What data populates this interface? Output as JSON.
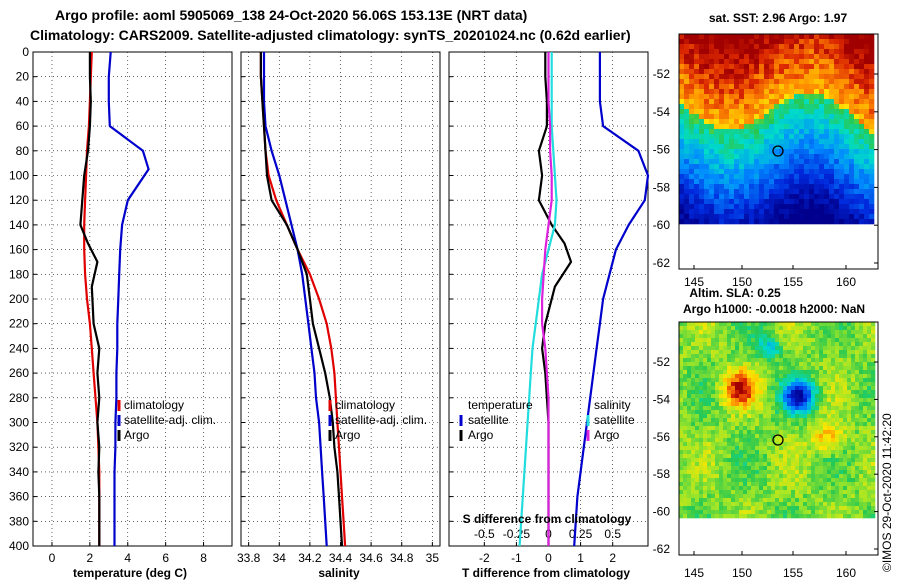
{
  "title_line1": "Argo profile: aoml 5905069_138 24-Oct-2020 56.06S 153.13E (NRT data)",
  "title_line2": "Climatology: CARS2009. Satellite-adjusted climatology: synTS_20201024.nc (0.62d earlier)",
  "watermark": "©IMOS 29-Oct-2020 11:42:20",
  "colors": {
    "climatology": "#e00000",
    "satellite": "#0000cc",
    "argo": "#000000",
    "t_diff": "#22dddd",
    "s_diff": "#dd22dd"
  },
  "chart_data": [
    {
      "type": "line",
      "name": "temperature",
      "xlabel": "temperature (deg C)",
      "xlim": [
        -1,
        9.5
      ],
      "xticks": [
        "0",
        "2",
        "4",
        "6",
        "8"
      ],
      "xtick_values": [
        0,
        2,
        4,
        6,
        8
      ],
      "ylim": [
        0,
        400
      ],
      "yticks": [
        "0",
        "20",
        "40",
        "60",
        "80",
        "100",
        "120",
        "140",
        "160",
        "180",
        "200",
        "220",
        "240",
        "260",
        "280",
        "300",
        "320",
        "340",
        "360",
        "380",
        "400"
      ],
      "legend": [
        "climatology",
        "satellite-adj. clim.",
        "Argo"
      ],
      "series": [
        {
          "name": "climatology",
          "color": "#e00000",
          "x": [
            2.1,
            2.05,
            2.0,
            1.95,
            1.85,
            1.8,
            1.75,
            1.7,
            1.7,
            1.75,
            1.85,
            2.0,
            2.1,
            2.2,
            2.3,
            2.4,
            2.45,
            2.5,
            2.5,
            2.5,
            2.5
          ],
          "y": [
            0,
            20,
            40,
            60,
            80,
            100,
            120,
            140,
            160,
            180,
            200,
            220,
            240,
            260,
            280,
            300,
            320,
            340,
            360,
            380,
            400
          ]
        },
        {
          "name": "satellite-adj. clim.",
          "color": "#0000cc",
          "x": [
            3.1,
            3.0,
            3.0,
            3.05,
            4.8,
            5.1,
            4.0,
            3.7,
            3.6,
            3.55,
            3.5,
            3.45,
            3.45,
            3.4,
            3.4,
            3.35,
            3.35,
            3.3,
            3.3,
            3.3,
            3.3
          ],
          "y": [
            0,
            20,
            40,
            60,
            80,
            95,
            120,
            140,
            160,
            180,
            200,
            220,
            240,
            260,
            280,
            300,
            320,
            340,
            360,
            380,
            400
          ]
        },
        {
          "name": "Argo",
          "color": "#000000",
          "x": [
            2.0,
            2.0,
            2.05,
            2.0,
            1.9,
            1.7,
            1.6,
            1.5,
            1.9,
            2.4,
            2.1,
            2.2,
            2.5,
            2.4,
            2.5,
            2.4,
            2.5,
            2.45,
            2.5,
            2.5,
            2.5
          ],
          "y": [
            0,
            20,
            40,
            60,
            80,
            100,
            120,
            140,
            155,
            170,
            190,
            220,
            240,
            260,
            280,
            300,
            320,
            340,
            360,
            380,
            400
          ]
        }
      ]
    },
    {
      "type": "line",
      "name": "salinity",
      "xlabel": "salinity",
      "xlim": [
        33.75,
        35.05
      ],
      "xticks": [
        "33.8",
        "34",
        "34.2",
        "34.4",
        "34.6",
        "34.8",
        "35"
      ],
      "xtick_values": [
        33.8,
        34.0,
        34.2,
        34.4,
        34.6,
        34.8,
        35.0
      ],
      "ylim": [
        0,
        400
      ],
      "legend": [
        "climatology",
        "satellite-adj. clim.",
        "Argo"
      ],
      "series": [
        {
          "name": "climatology",
          "color": "#e00000",
          "x": [
            33.88,
            33.88,
            33.89,
            33.9,
            33.91,
            33.93,
            33.98,
            34.05,
            34.12,
            34.2,
            34.26,
            34.31,
            34.34,
            34.36,
            34.37,
            34.38,
            34.39,
            34.4,
            34.41,
            34.42,
            34.43
          ],
          "y": [
            0,
            20,
            40,
            60,
            80,
            100,
            120,
            140,
            160,
            180,
            200,
            220,
            240,
            260,
            280,
            300,
            320,
            340,
            360,
            380,
            400
          ]
        },
        {
          "name": "satellite-adj. clim.",
          "color": "#0000cc",
          "x": [
            33.9,
            33.9,
            33.9,
            33.91,
            33.95,
            34.0,
            34.04,
            34.08,
            34.12,
            34.15,
            34.17,
            34.19,
            34.21,
            34.23,
            34.24,
            34.26,
            34.27,
            34.28,
            34.29,
            34.3,
            34.31
          ],
          "y": [
            0,
            20,
            40,
            60,
            80,
            100,
            120,
            140,
            160,
            180,
            200,
            220,
            240,
            260,
            280,
            300,
            320,
            340,
            360,
            380,
            400
          ]
        },
        {
          "name": "Argo",
          "color": "#000000",
          "x": [
            33.88,
            33.88,
            33.89,
            33.9,
            33.91,
            33.92,
            33.95,
            34.05,
            34.12,
            34.18,
            34.2,
            34.22,
            34.26,
            34.3,
            34.33,
            34.35,
            34.36,
            34.38,
            34.39,
            34.4,
            34.41
          ],
          "y": [
            0,
            20,
            40,
            60,
            80,
            100,
            120,
            140,
            160,
            180,
            200,
            220,
            240,
            260,
            280,
            300,
            320,
            340,
            360,
            380,
            400
          ]
        }
      ]
    },
    {
      "type": "line",
      "name": "difference",
      "xlabel": "T difference from climatology",
      "top_label": "S difference from climatology",
      "xlim": [
        -3.1,
        3.1
      ],
      "xticks": [
        "-2",
        "-1",
        "0",
        "1",
        "2"
      ],
      "xtick_values": [
        -2,
        -1,
        0,
        1,
        2
      ],
      "top_ticks": [
        "-0.5",
        "-0.25",
        "0",
        "0.25",
        "0.5"
      ],
      "top_tick_values": [
        -0.5,
        -0.25,
        0,
        0.25,
        0.5
      ],
      "ylim": [
        0,
        400
      ],
      "legend_left_title": "temperature",
      "legend_left": [
        "satellite",
        "Argo"
      ],
      "legend_right_title": "salinity",
      "legend_right": [
        "satellite",
        "Argo"
      ],
      "series": [
        {
          "name": "T satellite",
          "color": "#0000cc",
          "x": [
            1.6,
            1.6,
            1.6,
            1.7,
            2.8,
            3.1,
            3.0,
            2.5,
            2.1,
            1.9,
            1.7,
            1.6,
            1.5,
            1.4,
            1.3,
            1.2,
            1.1,
            1.0,
            0.9,
            0.85,
            0.8
          ],
          "y": [
            0,
            20,
            40,
            60,
            80,
            100,
            120,
            140,
            160,
            180,
            200,
            220,
            240,
            260,
            280,
            300,
            320,
            340,
            360,
            380,
            400
          ]
        },
        {
          "name": "T Argo",
          "color": "#000000",
          "x": [
            -0.1,
            -0.1,
            -0.05,
            -0.05,
            -0.3,
            -0.2,
            -0.3,
            0.1,
            0.5,
            0.7,
            0.2,
            -0.1,
            -0.2,
            -0.1,
            -0.05,
            0.0,
            0.0,
            0.0,
            0.0,
            0.0,
            0.0
          ],
          "y": [
            0,
            20,
            40,
            60,
            80,
            100,
            120,
            140,
            155,
            170,
            190,
            220,
            240,
            260,
            280,
            300,
            320,
            340,
            360,
            380,
            400
          ]
        },
        {
          "name": "S satellite",
          "color": "#22dddd",
          "x": [
            0.1,
            0.1,
            0.1,
            0.1,
            0.15,
            0.2,
            0.25,
            0.2,
            0.0,
            -0.2,
            -0.3,
            -0.4,
            -0.5,
            -0.55,
            -0.6,
            -0.65,
            -0.7,
            -0.75,
            -0.8,
            -0.85,
            -0.9
          ],
          "y": [
            0,
            20,
            40,
            60,
            80,
            100,
            120,
            140,
            160,
            180,
            200,
            220,
            240,
            260,
            280,
            300,
            320,
            340,
            360,
            380,
            400
          ]
        },
        {
          "name": "S Argo",
          "color": "#dd22dd",
          "x": [
            0.0,
            0.0,
            0.0,
            0.05,
            0.05,
            0.1,
            0.1,
            0.0,
            -0.1,
            -0.15,
            -0.2,
            -0.2,
            -0.1,
            -0.05,
            0.0,
            0.0,
            0.0,
            0.0,
            0.0,
            0.0,
            0.0
          ],
          "y": [
            0,
            20,
            40,
            60,
            80,
            100,
            120,
            140,
            160,
            180,
            200,
            220,
            240,
            260,
            280,
            300,
            320,
            340,
            360,
            380,
            400
          ]
        }
      ]
    },
    {
      "type": "heatmap",
      "name": "sst-map",
      "title": "sat. SST: 2.96 Argo: 1.97",
      "xticks": [
        "145",
        "150",
        "155",
        "160"
      ],
      "yticks": [
        "-52",
        "-54",
        "-56",
        "-58",
        "-60",
        "-62"
      ]
    },
    {
      "type": "heatmap",
      "name": "sla-map",
      "title": "Altim. SLA: 0.25",
      "subtitle": "Argo h1000: -0.0018 h2000: NaN",
      "xticks": [
        "145",
        "150",
        "155",
        "160"
      ],
      "yticks": [
        "-52",
        "-54",
        "-56",
        "-58",
        "-60",
        "-62"
      ]
    }
  ]
}
